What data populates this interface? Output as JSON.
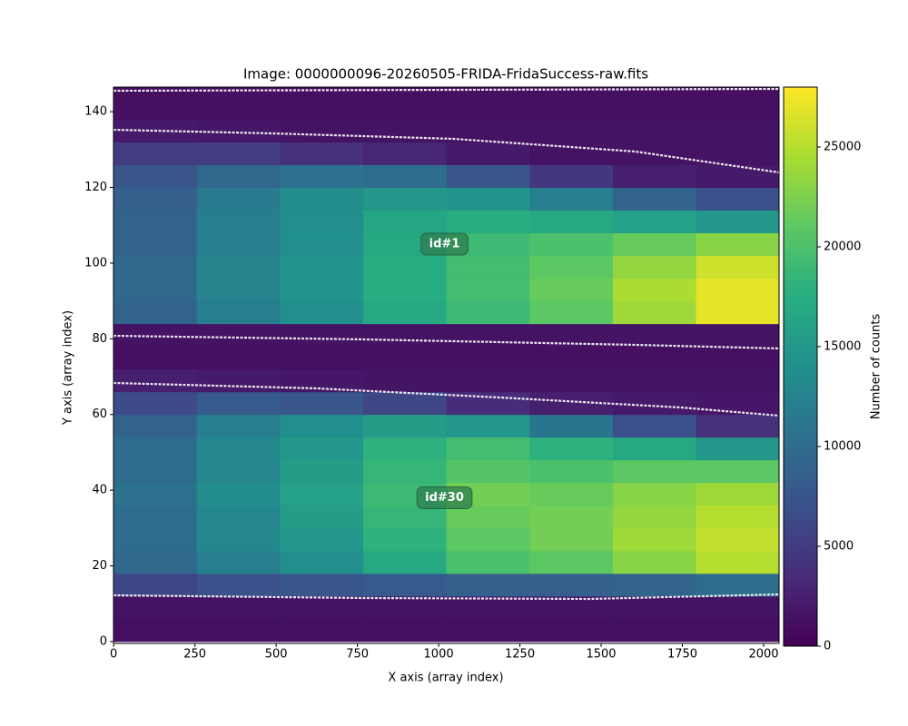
{
  "chart_data": {
    "type": "heatmap",
    "title": "Image: 0000000096-20260505-FRIDA-FridaSuccess-raw.fits",
    "x_label": "X axis (array index)",
    "y_label": "Y axis (array index)",
    "colorbar_label": "Number of counts",
    "colormap": "viridis",
    "xlim": [
      -0.5,
      2047.5
    ],
    "ylim": [
      -0.5,
      146.5
    ],
    "clim": [
      0,
      28000
    ],
    "xticks": [
      0,
      250,
      500,
      750,
      1000,
      1250,
      1500,
      1750,
      2000
    ],
    "yticks": [
      0,
      20,
      40,
      60,
      80,
      100,
      120,
      140
    ],
    "cticks": [
      0,
      5000,
      10000,
      15000,
      20000,
      25000
    ],
    "xbins": [
      0,
      256,
      512,
      768,
      1024,
      1280,
      1536,
      1792,
      2048
    ],
    "ybins": [
      0,
      6,
      12,
      18,
      24,
      30,
      36,
      42,
      48,
      54,
      60,
      66,
      72,
      78,
      84,
      90,
      96,
      102,
      108,
      114,
      120,
      126,
      132,
      138,
      144,
      147
    ],
    "z": [
      [
        1200,
        1200,
        1200,
        1200,
        1200,
        1200,
        1200,
        1200
      ],
      [
        1500,
        1500,
        1500,
        1500,
        1500,
        1500,
        1500,
        1500
      ],
      [
        6000,
        7000,
        7500,
        8000,
        8500,
        8500,
        9000,
        10000
      ],
      [
        9500,
        12000,
        14000,
        17000,
        20000,
        21000,
        23000,
        25000
      ],
      [
        10000,
        13000,
        15000,
        18000,
        21000,
        22000,
        24000,
        25500
      ],
      [
        10000,
        13000,
        15500,
        18500,
        21500,
        22000,
        23500,
        25000
      ],
      [
        10500,
        13500,
        16000,
        19000,
        22000,
        21500,
        23000,
        24000
      ],
      [
        10000,
        13000,
        15500,
        18500,
        20500,
        20000,
        21000,
        21000
      ],
      [
        10000,
        13000,
        15000,
        18000,
        19500,
        18000,
        17000,
        15000
      ],
      [
        9000,
        12000,
        14000,
        15500,
        15000,
        11000,
        7000,
        4000
      ],
      [
        6500,
        8000,
        7500,
        6000,
        3500,
        2500,
        2000,
        1800
      ],
      [
        2500,
        2000,
        1800,
        1600,
        1500,
        1500,
        1500,
        1500
      ],
      [
        1200,
        1200,
        1200,
        1200,
        1200,
        1200,
        1200,
        1200
      ],
      [
        1500,
        1500,
        1500,
        1500,
        1500,
        1500,
        1500,
        1500
      ],
      [
        9000,
        12000,
        14000,
        17000,
        19000,
        21000,
        24000,
        27000
      ],
      [
        9500,
        12500,
        14500,
        17500,
        19500,
        21500,
        24500,
        27000
      ],
      [
        9500,
        12500,
        14500,
        17500,
        19500,
        21000,
        23500,
        26000
      ],
      [
        9000,
        12000,
        14000,
        17000,
        19000,
        20000,
        21500,
        23000
      ],
      [
        9000,
        12000,
        14000,
        16500,
        17500,
        17000,
        16000,
        15000
      ],
      [
        8500,
        11500,
        13500,
        15000,
        14500,
        12000,
        9000,
        7000
      ],
      [
        7500,
        9500,
        10500,
        10000,
        7500,
        4500,
        2500,
        2000
      ],
      [
        5000,
        5000,
        4000,
        3000,
        2000,
        1500,
        1500,
        1500
      ],
      [
        2000,
        1800,
        1500,
        1500,
        1500,
        1500,
        1500,
        1500
      ],
      [
        1200,
        1200,
        1200,
        1200,
        1200,
        1200,
        1200,
        1200
      ],
      [
        1200,
        1200,
        1200,
        1200,
        1200,
        1200,
        1200,
        1200
      ]
    ],
    "annotations": [
      {
        "text": "id#1",
        "x": 1018,
        "y": 105
      },
      {
        "text": "id#30",
        "x": 1018,
        "y": 38
      }
    ]
  }
}
